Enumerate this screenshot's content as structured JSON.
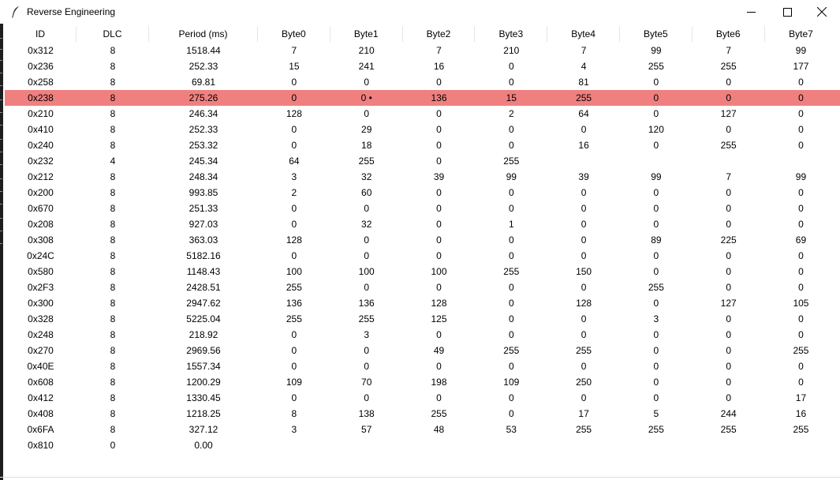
{
  "window": {
    "title": "Reverse Engineering"
  },
  "table": {
    "columns": [
      "ID",
      "DLC",
      "Period (ms)",
      "Byte0",
      "Byte1",
      "Byte2",
      "Byte3",
      "Byte4",
      "Byte5",
      "Byte6",
      "Byte7"
    ],
    "selected_row": 3,
    "selected_color": "#f08080",
    "rows": [
      [
        "0x312",
        "8",
        "1518.44",
        "7",
        "210",
        "7",
        "210",
        "7",
        "99",
        "7",
        "99"
      ],
      [
        "0x236",
        "8",
        "252.33",
        "15",
        "241",
        "16",
        "0",
        "4",
        "255",
        "255",
        "177"
      ],
      [
        "0x258",
        "8",
        "69.81",
        "0",
        "0",
        "0",
        "0",
        "81",
        "0",
        "0",
        "0"
      ],
      [
        "0x238",
        "8",
        "275.26",
        "0",
        "0 •",
        "136",
        "15",
        "255",
        "0",
        "0",
        "0"
      ],
      [
        "0x210",
        "8",
        "246.34",
        "128",
        "0",
        "0",
        "2",
        "64",
        "0",
        "127",
        "0"
      ],
      [
        "0x410",
        "8",
        "252.33",
        "0",
        "29",
        "0",
        "0",
        "0",
        "120",
        "0",
        "0"
      ],
      [
        "0x240",
        "8",
        "253.32",
        "0",
        "18",
        "0",
        "0",
        "16",
        "0",
        "255",
        "0"
      ],
      [
        "0x232",
        "4",
        "245.34",
        "64",
        "255",
        "0",
        "255",
        "",
        "",
        "",
        ""
      ],
      [
        "0x212",
        "8",
        "248.34",
        "3",
        "32",
        "39",
        "99",
        "39",
        "99",
        "7",
        "99"
      ],
      [
        "0x200",
        "8",
        "993.85",
        "2",
        "60",
        "0",
        "0",
        "0",
        "0",
        "0",
        "0"
      ],
      [
        "0x670",
        "8",
        "251.33",
        "0",
        "0",
        "0",
        "0",
        "0",
        "0",
        "0",
        "0"
      ],
      [
        "0x208",
        "8",
        "927.03",
        "0",
        "32",
        "0",
        "1",
        "0",
        "0",
        "0",
        "0"
      ],
      [
        "0x308",
        "8",
        "363.03",
        "128",
        "0",
        "0",
        "0",
        "0",
        "89",
        "225",
        "69"
      ],
      [
        "0x24C",
        "8",
        "5182.16",
        "0",
        "0",
        "0",
        "0",
        "0",
        "0",
        "0",
        "0"
      ],
      [
        "0x580",
        "8",
        "1148.43",
        "100",
        "100",
        "100",
        "255",
        "150",
        "0",
        "0",
        "0"
      ],
      [
        "0x2F3",
        "8",
        "2428.51",
        "255",
        "0",
        "0",
        "0",
        "0",
        "255",
        "0",
        "0"
      ],
      [
        "0x300",
        "8",
        "2947.62",
        "136",
        "136",
        "128",
        "0",
        "128",
        "0",
        "127",
        "105"
      ],
      [
        "0x328",
        "8",
        "5225.04",
        "255",
        "255",
        "125",
        "0",
        "0",
        "3",
        "0",
        "0"
      ],
      [
        "0x248",
        "8",
        "218.92",
        "0",
        "3",
        "0",
        "0",
        "0",
        "0",
        "0",
        "0"
      ],
      [
        "0x270",
        "8",
        "2969.56",
        "0",
        "0",
        "49",
        "255",
        "255",
        "0",
        "0",
        "255"
      ],
      [
        "0x40E",
        "8",
        "1557.34",
        "0",
        "0",
        "0",
        "0",
        "0",
        "0",
        "0",
        "0"
      ],
      [
        "0x608",
        "8",
        "1200.29",
        "109",
        "70",
        "198",
        "109",
        "250",
        "0",
        "0",
        "0"
      ],
      [
        "0x412",
        "8",
        "1330.45",
        "0",
        "0",
        "0",
        "0",
        "0",
        "0",
        "0",
        "17"
      ],
      [
        "0x408",
        "8",
        "1218.25",
        "8",
        "138",
        "255",
        "0",
        "17",
        "5",
        "244",
        "16"
      ],
      [
        "0x6FA",
        "8",
        "327.12",
        "3",
        "57",
        "48",
        "53",
        "255",
        "255",
        "255",
        "255"
      ],
      [
        "0x810",
        "0",
        "0.00",
        "",
        "",
        "",
        "",
        "",
        "",
        "",
        ""
      ]
    ]
  }
}
